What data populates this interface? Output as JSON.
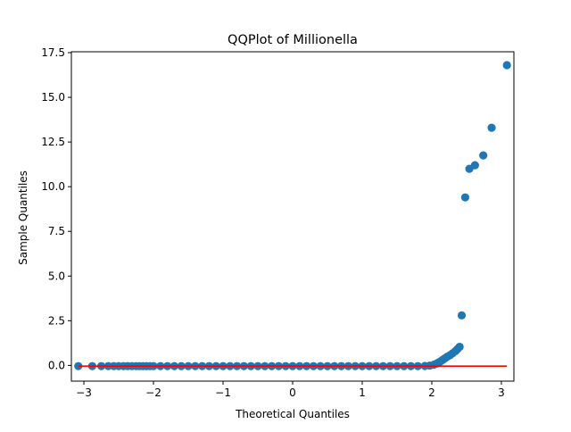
{
  "chart_data": {
    "type": "scatter",
    "title": "QQPlot of Millionella",
    "xlabel": "Theoretical Quantiles",
    "ylabel": "Sample Quantiles",
    "xlim": [
      -3.18,
      3.18
    ],
    "ylim": [
      -0.88,
      17.55
    ],
    "xticks": [
      -3,
      -2,
      -1,
      0,
      1,
      2,
      3
    ],
    "xtick_labels": [
      "−3",
      "−2",
      "−1",
      "0",
      "1",
      "2",
      "3"
    ],
    "yticks": [
      0.0,
      2.5,
      5.0,
      7.5,
      10.0,
      12.5,
      15.0,
      17.5
    ],
    "ytick_labels": [
      "0.0",
      "2.5",
      "5.0",
      "7.5",
      "10.0",
      "12.5",
      "15.0",
      "17.5"
    ],
    "grid": false,
    "series": [
      {
        "kind": "points",
        "color": "#1f77b4",
        "points": [
          [
            -3.08,
            -0.04
          ],
          [
            -2.88,
            -0.04
          ],
          [
            -2.75,
            -0.04
          ],
          [
            -2.65,
            -0.04
          ],
          [
            -2.57,
            -0.04
          ],
          [
            -2.5,
            -0.04
          ],
          [
            -2.43,
            -0.04
          ],
          [
            -2.37,
            -0.04
          ],
          [
            -2.31,
            -0.04
          ],
          [
            -2.25,
            -0.04
          ],
          [
            -2.2,
            -0.04
          ],
          [
            -2.15,
            -0.04
          ],
          [
            -2.1,
            -0.04
          ],
          [
            -2.05,
            -0.04
          ],
          [
            -2.0,
            -0.04
          ],
          [
            -1.9,
            -0.04
          ],
          [
            -1.8,
            -0.04
          ],
          [
            -1.7,
            -0.04
          ],
          [
            -1.6,
            -0.04
          ],
          [
            -1.5,
            -0.04
          ],
          [
            -1.4,
            -0.04
          ],
          [
            -1.3,
            -0.04
          ],
          [
            -1.2,
            -0.04
          ],
          [
            -1.1,
            -0.04
          ],
          [
            -1.0,
            -0.04
          ],
          [
            -0.9,
            -0.04
          ],
          [
            -0.8,
            -0.04
          ],
          [
            -0.7,
            -0.04
          ],
          [
            -0.6,
            -0.04
          ],
          [
            -0.5,
            -0.04
          ],
          [
            -0.4,
            -0.04
          ],
          [
            -0.3,
            -0.04
          ],
          [
            -0.2,
            -0.04
          ],
          [
            -0.1,
            -0.04
          ],
          [
            0.0,
            -0.04
          ],
          [
            0.1,
            -0.04
          ],
          [
            0.2,
            -0.04
          ],
          [
            0.3,
            -0.04
          ],
          [
            0.4,
            -0.04
          ],
          [
            0.5,
            -0.04
          ],
          [
            0.6,
            -0.04
          ],
          [
            0.7,
            -0.04
          ],
          [
            0.8,
            -0.04
          ],
          [
            0.9,
            -0.04
          ],
          [
            1.0,
            -0.04
          ],
          [
            1.1,
            -0.04
          ],
          [
            1.2,
            -0.04
          ],
          [
            1.3,
            -0.04
          ],
          [
            1.4,
            -0.04
          ],
          [
            1.5,
            -0.04
          ],
          [
            1.6,
            -0.04
          ],
          [
            1.7,
            -0.04
          ],
          [
            1.8,
            -0.04
          ],
          [
            1.9,
            -0.03
          ],
          [
            1.97,
            -0.01
          ],
          [
            2.03,
            0.04
          ],
          [
            2.07,
            0.1
          ],
          [
            2.1,
            0.17
          ],
          [
            2.13,
            0.24
          ],
          [
            2.16,
            0.32
          ],
          [
            2.19,
            0.4
          ],
          [
            2.22,
            0.48
          ],
          [
            2.26,
            0.57
          ],
          [
            2.3,
            0.68
          ],
          [
            2.34,
            0.8
          ],
          [
            2.37,
            0.92
          ],
          [
            2.4,
            1.04
          ],
          [
            2.43,
            2.8
          ],
          [
            2.48,
            9.4
          ],
          [
            2.54,
            11.0
          ],
          [
            2.62,
            11.2
          ],
          [
            2.74,
            11.75
          ],
          [
            2.86,
            13.3
          ],
          [
            3.08,
            16.8
          ]
        ]
      },
      {
        "kind": "line",
        "color": "#ff0000",
        "points": [
          [
            -3.08,
            -0.04
          ],
          [
            3.08,
            -0.04
          ]
        ]
      }
    ]
  }
}
